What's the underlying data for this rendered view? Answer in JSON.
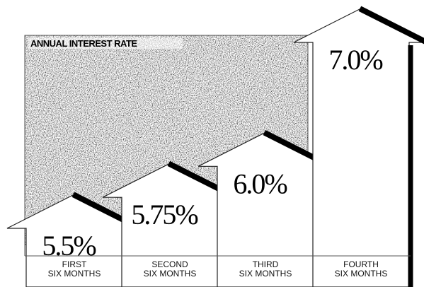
{
  "chart_data": {
    "type": "arrow-bar",
    "title": "ANNUAL INTEREST RATE",
    "categories": [
      "FIRST\nSIX MONTHS",
      "SECOND\nSIX MONTHS",
      "THIRD\nSIX MONTHS",
      "FOURTH\nSIX MONTHS"
    ],
    "values": [
      5.5,
      5.75,
      6.0,
      7.0
    ],
    "value_labels": [
      "5.5%",
      "5.75%",
      "6.0%",
      "7.0%"
    ],
    "color": "#ffffff"
  }
}
